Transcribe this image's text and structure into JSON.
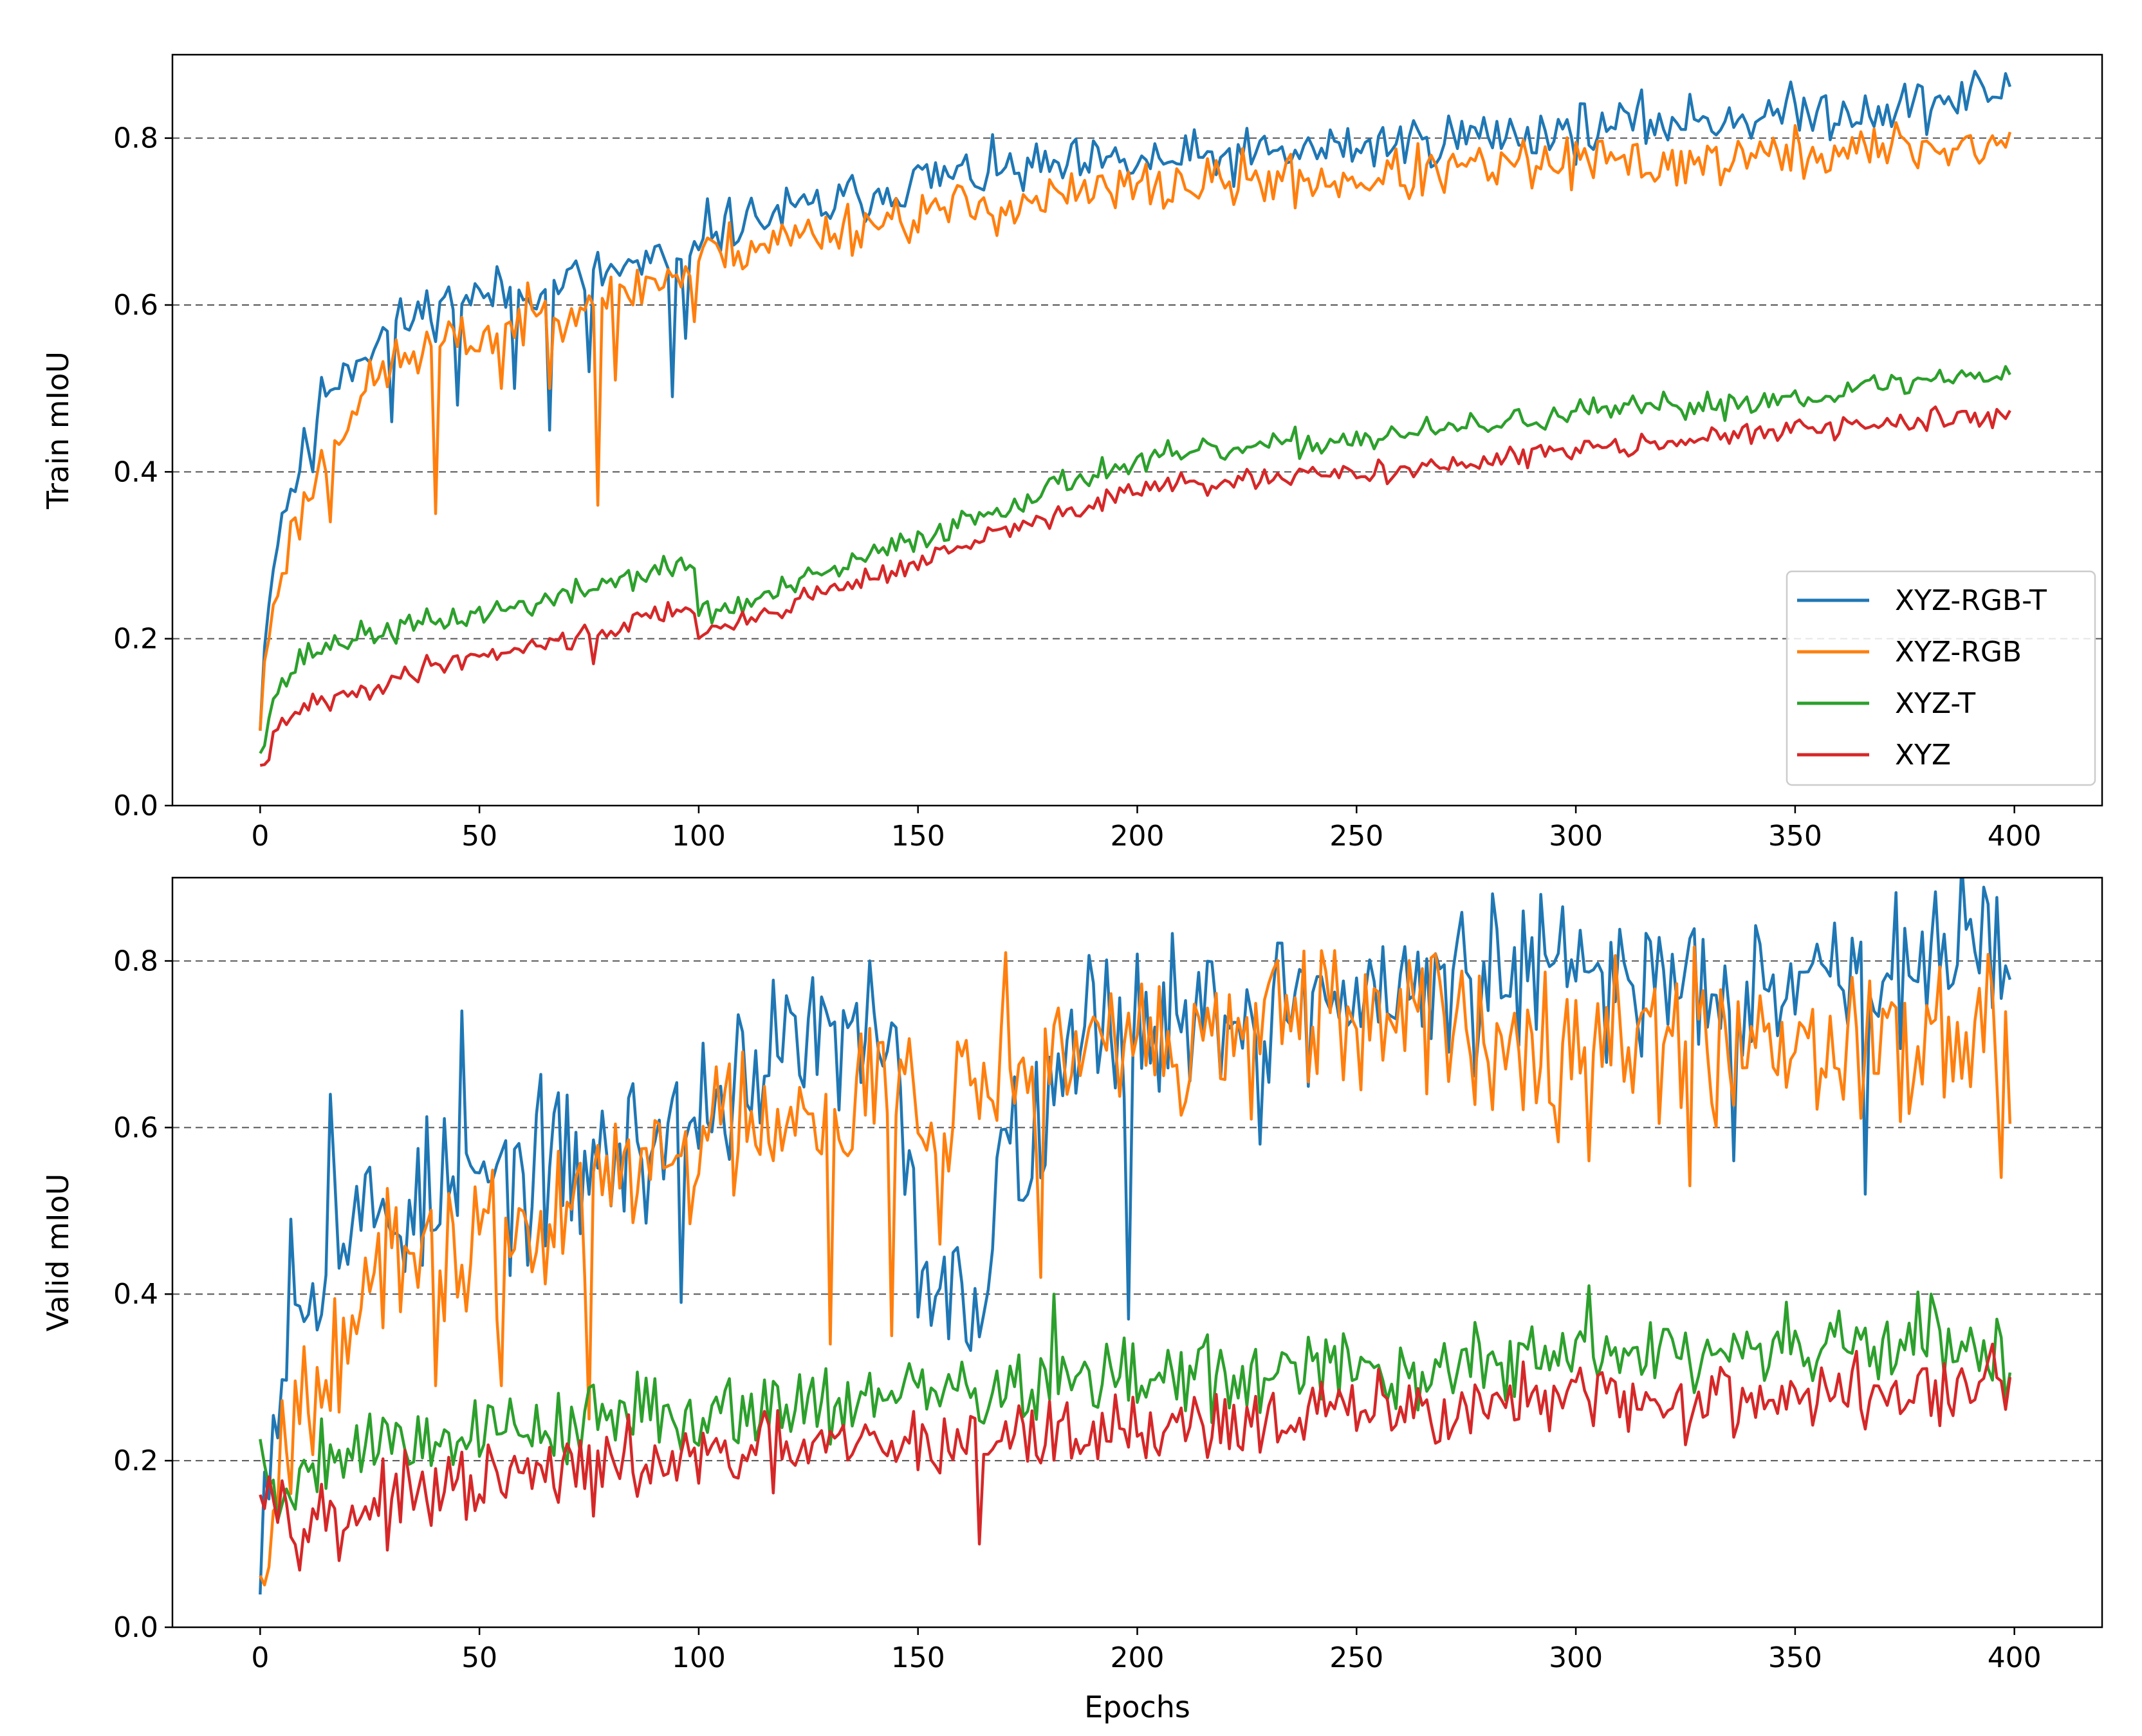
{
  "chart_data": [
    {
      "type": "line",
      "ylabel": "Train mIoU",
      "xlabel": "",
      "xlim": [
        -20,
        420
      ],
      "ylim": [
        0,
        0.9
      ],
      "xticks": [
        "0",
        "50",
        "100",
        "150",
        "200",
        "250",
        "300",
        "350",
        "400"
      ],
      "yticks": [
        "0.0",
        "0.2",
        "0.4",
        "0.6",
        "0.8"
      ],
      "grid": "horizontal dashed",
      "legend_position": "lower right",
      "legend": [
        "XYZ-RGB-T",
        "XYZ-RGB",
        "XYZ-T",
        "XYZ"
      ],
      "series": [
        {
          "name": "XYZ-RGB-T",
          "color": "#1f77b4",
          "noise": 0.02,
          "seed": 11,
          "points": [
            [
              0,
              0.11
            ],
            [
              2,
              0.26
            ],
            [
              5,
              0.35
            ],
            [
              10,
              0.42
            ],
            [
              15,
              0.5
            ],
            [
              20,
              0.53
            ],
            [
              30,
              0.57
            ],
            [
              40,
              0.6
            ],
            [
              50,
              0.61
            ],
            [
              60,
              0.62
            ],
            [
              70,
              0.63
            ],
            [
              80,
              0.64
            ],
            [
              90,
              0.65
            ],
            [
              98,
              0.64
            ],
            [
              100,
              0.69
            ],
            [
              110,
              0.7
            ],
            [
              130,
              0.72
            ],
            [
              150,
              0.75
            ],
            [
              170,
              0.76
            ],
            [
              200,
              0.77
            ],
            [
              230,
              0.78
            ],
            [
              250,
              0.79
            ],
            [
              270,
              0.8
            ],
            [
              300,
              0.81
            ],
            [
              320,
              0.82
            ],
            [
              350,
              0.83
            ],
            [
              380,
              0.84
            ],
            [
              399,
              0.86
            ]
          ],
          "dips": [
            [
              12,
              0.4
            ],
            [
              30,
              0.46
            ],
            [
              45,
              0.48
            ],
            [
              58,
              0.5
            ],
            [
              66,
              0.45
            ],
            [
              75,
              0.52
            ],
            [
              94,
              0.49
            ],
            [
              97,
              0.56
            ]
          ]
        },
        {
          "name": "XYZ-RGB",
          "color": "#ff7f0e",
          "noise": 0.02,
          "seed": 23,
          "points": [
            [
              0,
              0.1
            ],
            [
              2,
              0.21
            ],
            [
              5,
              0.29
            ],
            [
              10,
              0.36
            ],
            [
              15,
              0.42
            ],
            [
              20,
              0.47
            ],
            [
              30,
              0.53
            ],
            [
              40,
              0.55
            ],
            [
              50,
              0.56
            ],
            [
              60,
              0.58
            ],
            [
              70,
              0.6
            ],
            [
              80,
              0.61
            ],
            [
              90,
              0.63
            ],
            [
              98,
              0.64
            ],
            [
              100,
              0.66
            ],
            [
              110,
              0.67
            ],
            [
              130,
              0.69
            ],
            [
              150,
              0.71
            ],
            [
              170,
              0.72
            ],
            [
              200,
              0.74
            ],
            [
              230,
              0.75
            ],
            [
              250,
              0.75
            ],
            [
              270,
              0.76
            ],
            [
              300,
              0.77
            ],
            [
              320,
              0.77
            ],
            [
              350,
              0.78
            ],
            [
              380,
              0.79
            ],
            [
              399,
              0.79
            ]
          ],
          "dips": [
            [
              16,
              0.34
            ],
            [
              40,
              0.35
            ],
            [
              55,
              0.5
            ],
            [
              66,
              0.5
            ],
            [
              77,
              0.36
            ],
            [
              81,
              0.51
            ],
            [
              99,
              0.58
            ]
          ]
        },
        {
          "name": "XYZ-T",
          "color": "#2ca02c",
          "noise": 0.01,
          "seed": 37,
          "points": [
            [
              0,
              0.07
            ],
            [
              3,
              0.13
            ],
            [
              10,
              0.18
            ],
            [
              20,
              0.2
            ],
            [
              30,
              0.21
            ],
            [
              40,
              0.22
            ],
            [
              50,
              0.23
            ],
            [
              60,
              0.24
            ],
            [
              70,
              0.25
            ],
            [
              80,
              0.27
            ],
            [
              90,
              0.28
            ],
            [
              99,
              0.29
            ],
            [
              100,
              0.23
            ],
            [
              110,
              0.24
            ],
            [
              130,
              0.28
            ],
            [
              150,
              0.32
            ],
            [
              170,
              0.36
            ],
            [
              190,
              0.4
            ],
            [
              210,
              0.42
            ],
            [
              230,
              0.43
            ],
            [
              250,
              0.44
            ],
            [
              270,
              0.45
            ],
            [
              300,
              0.47
            ],
            [
              330,
              0.48
            ],
            [
              350,
              0.49
            ],
            [
              380,
              0.51
            ],
            [
              399,
              0.52
            ]
          ],
          "dips": []
        },
        {
          "name": "XYZ",
          "color": "#d62728",
          "noise": 0.008,
          "seed": 41,
          "points": [
            [
              0,
              0.04
            ],
            [
              3,
              0.08
            ],
            [
              10,
              0.12
            ],
            [
              20,
              0.13
            ],
            [
              30,
              0.15
            ],
            [
              40,
              0.17
            ],
            [
              50,
              0.18
            ],
            [
              60,
              0.19
            ],
            [
              70,
              0.2
            ],
            [
              80,
              0.21
            ],
            [
              90,
              0.23
            ],
            [
              99,
              0.24
            ],
            [
              100,
              0.2
            ],
            [
              110,
              0.22
            ],
            [
              130,
              0.26
            ],
            [
              150,
              0.29
            ],
            [
              170,
              0.33
            ],
            [
              190,
              0.36
            ],
            [
              200,
              0.38
            ],
            [
              230,
              0.39
            ],
            [
              250,
              0.4
            ],
            [
              280,
              0.41
            ],
            [
              300,
              0.43
            ],
            [
              330,
              0.44
            ],
            [
              350,
              0.45
            ],
            [
              380,
              0.46
            ],
            [
              399,
              0.47
            ]
          ],
          "dips": [
            [
              76,
              0.17
            ]
          ]
        }
      ]
    },
    {
      "type": "line",
      "ylabel": "Valid mIoU",
      "xlabel": "Epochs",
      "xlim": [
        -20,
        420
      ],
      "ylim": [
        0,
        0.9
      ],
      "xticks": [
        "0",
        "50",
        "100",
        "150",
        "200",
        "250",
        "300",
        "350",
        "400"
      ],
      "yticks": [
        "0.0",
        "0.2",
        "0.4",
        "0.6",
        "0.8"
      ],
      "grid": "horizontal dashed",
      "series": [
        {
          "name": "XYZ-RGB-T",
          "color": "#1f77b4",
          "noise": 0.06,
          "seed": 53,
          "points": [
            [
              0,
              0.14
            ],
            [
              5,
              0.33
            ],
            [
              15,
              0.47
            ],
            [
              30,
              0.5
            ],
            [
              50,
              0.53
            ],
            [
              70,
              0.55
            ],
            [
              90,
              0.58
            ],
            [
              100,
              0.62
            ],
            [
              110,
              0.67
            ],
            [
              130,
              0.7
            ],
            [
              145,
              0.66
            ],
            [
              150,
              0.45
            ],
            [
              160,
              0.38
            ],
            [
              165,
              0.4
            ],
            [
              170,
              0.62
            ],
            [
              175,
              0.55
            ],
            [
              180,
              0.7
            ],
            [
              200,
              0.73
            ],
            [
              230,
              0.75
            ],
            [
              260,
              0.76
            ],
            [
              290,
              0.78
            ],
            [
              320,
              0.78
            ],
            [
              350,
              0.79
            ],
            [
              380,
              0.79
            ],
            [
              399,
              0.8
            ]
          ],
          "dips": [
            [
              7,
              0.49
            ],
            [
              16,
              0.64
            ],
            [
              46,
              0.74
            ],
            [
              96,
              0.39
            ],
            [
              126,
              0.78
            ],
            [
              139,
              0.8
            ],
            [
              198,
              0.37
            ],
            [
              228,
              0.58
            ],
            [
              288,
              0.86
            ],
            [
              336,
              0.56
            ],
            [
              366,
              0.52
            ],
            [
              390,
              0.85
            ]
          ]
        },
        {
          "name": "XYZ-RGB",
          "color": "#ff7f0e",
          "noise": 0.06,
          "seed": 67,
          "points": [
            [
              0,
              0.08
            ],
            [
              5,
              0.22
            ],
            [
              15,
              0.35
            ],
            [
              30,
              0.42
            ],
            [
              50,
              0.46
            ],
            [
              70,
              0.5
            ],
            [
              90,
              0.56
            ],
            [
              100,
              0.58
            ],
            [
              110,
              0.62
            ],
            [
              130,
              0.64
            ],
            [
              150,
              0.65
            ],
            [
              170,
              0.66
            ],
            [
              180,
              0.67
            ],
            [
              200,
              0.7
            ],
            [
              230,
              0.71
            ],
            [
              260,
              0.72
            ],
            [
              290,
              0.72
            ],
            [
              320,
              0.71
            ],
            [
              350,
              0.71
            ],
            [
              380,
              0.71
            ],
            [
              399,
              0.7
            ]
          ],
          "dips": [
            [
              40,
              0.29
            ],
            [
              55,
              0.29
            ],
            [
              75,
              0.25
            ],
            [
              130,
              0.34
            ],
            [
              144,
              0.35
            ],
            [
              155,
              0.46
            ],
            [
              170,
              0.81
            ],
            [
              178,
              0.42
            ],
            [
              303,
              0.56
            ],
            [
              326,
              0.53
            ],
            [
              397,
              0.54
            ]
          ]
        },
        {
          "name": "XYZ-T",
          "color": "#2ca02c",
          "noise": 0.03,
          "seed": 79,
          "points": [
            [
              0,
              0.22
            ],
            [
              5,
              0.14
            ],
            [
              10,
              0.2
            ],
            [
              20,
              0.22
            ],
            [
              40,
              0.23
            ],
            [
              60,
              0.24
            ],
            [
              80,
              0.25
            ],
            [
              100,
              0.26
            ],
            [
              120,
              0.27
            ],
            [
              150,
              0.28
            ],
            [
              180,
              0.29
            ],
            [
              200,
              0.3
            ],
            [
              230,
              0.3
            ],
            [
              260,
              0.31
            ],
            [
              290,
              0.32
            ],
            [
              320,
              0.33
            ],
            [
              350,
              0.33
            ],
            [
              380,
              0.34
            ],
            [
              399,
              0.33
            ]
          ],
          "dips": [
            [
              181,
              0.4
            ],
            [
              303,
              0.41
            ],
            [
              381,
              0.4
            ]
          ]
        },
        {
          "name": "XYZ",
          "color": "#d62728",
          "noise": 0.028,
          "seed": 97,
          "points": [
            [
              0,
              0.2
            ],
            [
              5,
              0.15
            ],
            [
              10,
              0.13
            ],
            [
              20,
              0.14
            ],
            [
              40,
              0.16
            ],
            [
              60,
              0.18
            ],
            [
              80,
              0.19
            ],
            [
              100,
              0.2
            ],
            [
              120,
              0.21
            ],
            [
              150,
              0.22
            ],
            [
              180,
              0.23
            ],
            [
              200,
              0.24
            ],
            [
              230,
              0.25
            ],
            [
              260,
              0.26
            ],
            [
              290,
              0.27
            ],
            [
              320,
              0.27
            ],
            [
              350,
              0.28
            ],
            [
              380,
              0.28
            ],
            [
              399,
              0.29
            ]
          ],
          "dips": [
            [
              18,
              0.08
            ],
            [
              164,
              0.1
            ],
            [
              395,
              0.34
            ]
          ]
        }
      ]
    }
  ]
}
